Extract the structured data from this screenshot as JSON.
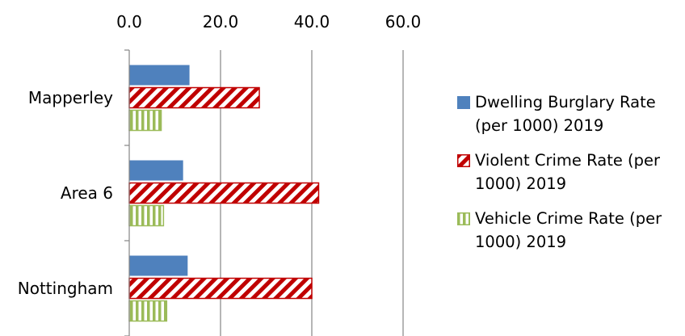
{
  "chart_data": {
    "type": "bar",
    "orientation": "horizontal",
    "categories": [
      "Mapperley",
      "Area 6",
      "Nottingham"
    ],
    "series": [
      {
        "name": "Dwelling Burglary Rate (per 1000) 2019",
        "values": [
          13.2,
          11.8,
          12.8
        ],
        "color": "#4f81bd",
        "pattern": "solid"
      },
      {
        "name": "Violent Crime Rate (per 1000) 2019",
        "values": [
          28.5,
          41.5,
          40.0
        ],
        "color": "#c00000",
        "pattern": "diagonal-stripes"
      },
      {
        "name": "Vehicle Crime Rate (per 1000) 2019",
        "values": [
          7.0,
          7.5,
          8.2
        ],
        "color": "#9bbb59",
        "pattern": "vertical-stripes"
      }
    ],
    "xlim": [
      0,
      60
    ],
    "x_ticks": [
      "0.0",
      "20.0",
      "40.0",
      "60.0"
    ],
    "axis_position": "top",
    "grid": true,
    "legend_position": "right"
  }
}
